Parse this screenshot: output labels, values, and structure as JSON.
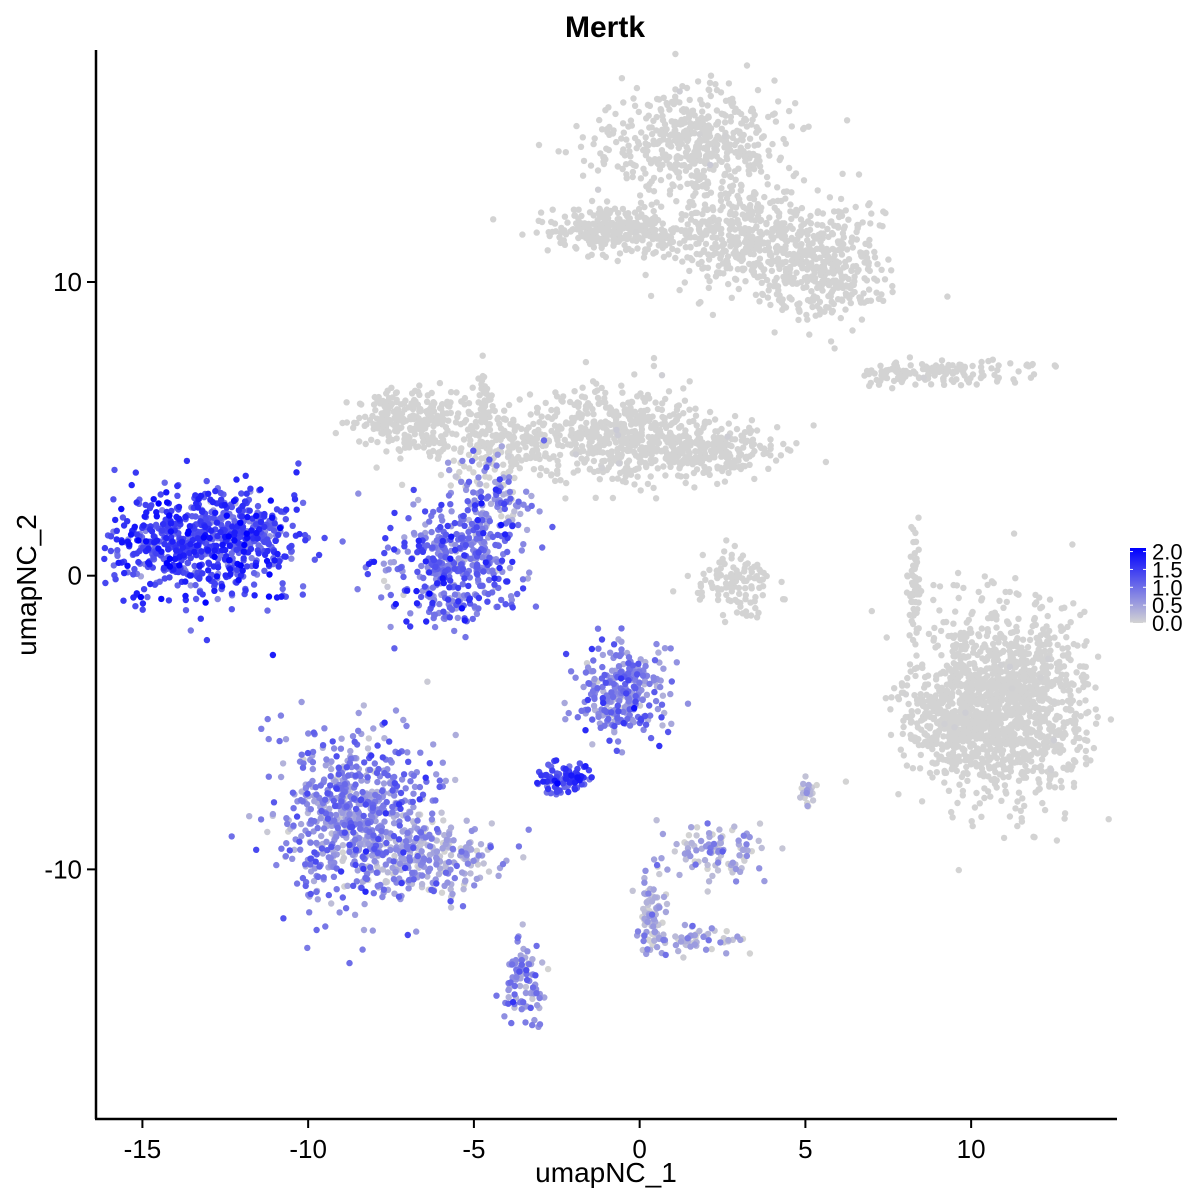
{
  "chart_data": {
    "type": "scatter",
    "title": "Mertk",
    "xlabel": "umapNC_1",
    "ylabel": "umapNC_2",
    "xlim": [
      -16.4,
      14.4
    ],
    "ylim": [
      -18.5,
      17.9
    ],
    "xticks": [
      -15,
      -10,
      -5,
      0,
      5,
      10
    ],
    "xtick_labels": [
      "-15",
      "-10",
      "-5",
      "0",
      "5",
      "10"
    ],
    "yticks": [
      -10,
      0,
      10
    ],
    "ytick_labels": [
      "-10",
      "0",
      "10"
    ],
    "grid": false,
    "legend": {
      "placement": "right",
      "ticks": [
        2.0,
        1.5,
        1.0,
        0.5,
        0.0
      ],
      "tick_labels": [
        "2.0",
        "1.5",
        "1.0",
        "0.5",
        "0.0"
      ],
      "range": [
        0.0,
        2.1
      ]
    },
    "colors": {
      "low": "#d3d3d3",
      "high": "#0000ff"
    },
    "clusters": [
      {
        "cx": -13.3,
        "cy": 1.0,
        "sx": 1.4,
        "sy": 1.0,
        "n": 650,
        "expr": 1.45,
        "exprSd": 0.35
      },
      {
        "cx": -11.7,
        "cy": 1.6,
        "sx": 0.6,
        "sy": 0.5,
        "n": 90,
        "expr": 1.1,
        "exprSd": 0.35
      },
      {
        "cx": -5.7,
        "cy": 0.3,
        "sx": 1.0,
        "sy": 1.0,
        "n": 420,
        "expr": 1.0,
        "exprSd": 0.4
      },
      {
        "cx": -4.5,
        "cy": 2.3,
        "sx": 0.6,
        "sy": 0.8,
        "n": 120,
        "expr": 0.8,
        "exprSd": 0.4
      },
      {
        "cx": -8.5,
        "cy": -8.3,
        "sx": 1.2,
        "sy": 1.5,
        "n": 720,
        "expr": 0.75,
        "exprSd": 0.35
      },
      {
        "cx": -6.3,
        "cy": -9.6,
        "sx": 1.2,
        "sy": 0.6,
        "n": 220,
        "expr": 0.35,
        "exprSd": 0.35
      },
      {
        "cx": -3.5,
        "cy": -14.0,
        "sx": 0.3,
        "sy": 0.8,
        "n": 90,
        "expr": 0.7,
        "exprSd": 0.3
      },
      {
        "cx": -0.5,
        "cy": -4.0,
        "sx": 0.7,
        "sy": 0.8,
        "n": 300,
        "expr": 0.75,
        "exprSd": 0.35
      },
      {
        "cx": -2.3,
        "cy": -6.9,
        "sx": 0.4,
        "sy": 0.25,
        "n": 90,
        "expr": 1.4,
        "exprSd": 0.3
      },
      {
        "cx": -0.6,
        "cy": 11.8,
        "sx": 1.1,
        "sy": 0.4,
        "n": 300,
        "expr": 0.0,
        "exprSd": 0.05
      },
      {
        "cx": 1.7,
        "cy": 14.7,
        "sx": 1.4,
        "sy": 0.9,
        "n": 500,
        "expr": 0.0,
        "exprSd": 0.05
      },
      {
        "cx": 3.5,
        "cy": 11.5,
        "sx": 1.4,
        "sy": 0.9,
        "n": 450,
        "expr": 0.0,
        "exprSd": 0.05
      },
      {
        "cx": 5.5,
        "cy": 10.3,
        "sx": 1.0,
        "sy": 0.9,
        "n": 300,
        "expr": 0.0,
        "exprSd": 0.05
      },
      {
        "cx": -6.9,
        "cy": 5.2,
        "sx": 0.9,
        "sy": 0.6,
        "n": 280,
        "expr": 0.0,
        "exprSd": 0.05
      },
      {
        "cx": -3.8,
        "cy": 4.3,
        "sx": 1.0,
        "sy": 0.7,
        "n": 220,
        "expr": 0.05,
        "exprSd": 0.1
      },
      {
        "cx": -0.6,
        "cy": 4.8,
        "sx": 1.2,
        "sy": 0.8,
        "n": 420,
        "expr": 0.02,
        "exprSd": 0.05
      },
      {
        "cx": 1.8,
        "cy": 4.3,
        "sx": 1.2,
        "sy": 0.5,
        "n": 300,
        "expr": 0.0,
        "exprSd": 0.05
      },
      {
        "cx": 11.0,
        "cy": -4.3,
        "sx": 1.3,
        "sy": 1.6,
        "n": 1300,
        "expr": 0.0,
        "exprSd": 0.03
      },
      {
        "cx": 9.4,
        "cy": -5.0,
        "sx": 0.8,
        "sy": 0.9,
        "n": 220,
        "expr": 0.0,
        "exprSd": 0.03
      },
      {
        "cx": 9.0,
        "cy": 6.9,
        "sx": 1.3,
        "sy": 0.2,
        "n": 140,
        "expr": 0.0,
        "exprSd": 0.03
      },
      {
        "cx": 2.9,
        "cy": -0.2,
        "sx": 0.6,
        "sy": 0.5,
        "n": 110,
        "expr": 0.03,
        "exprSd": 0.1
      },
      {
        "cx": 2.3,
        "cy": -9.4,
        "sx": 0.7,
        "sy": 0.5,
        "n": 100,
        "expr": 0.4,
        "exprSd": 0.3
      },
      {
        "cx": 0.4,
        "cy": -11.5,
        "sx": 0.2,
        "sy": 0.8,
        "n": 80,
        "expr": 0.3,
        "exprSd": 0.3
      },
      {
        "cx": 1.6,
        "cy": -12.3,
        "sx": 0.8,
        "sy": 0.3,
        "n": 60,
        "expr": 0.4,
        "exprSd": 0.3
      },
      {
        "cx": 8.3,
        "cy": -0.4,
        "sx": 0.1,
        "sy": 0.8,
        "n": 60,
        "expr": 0.0,
        "exprSd": 0.05
      },
      {
        "cx": -4.7,
        "cy": 5.9,
        "sx": 0.1,
        "sy": 0.8,
        "n": 50,
        "expr": 0.0,
        "exprSd": 0.03
      },
      {
        "cx": 5.0,
        "cy": -7.4,
        "sx": 0.15,
        "sy": 0.2,
        "n": 25,
        "expr": 0.2,
        "exprSd": 0.2
      }
    ]
  }
}
